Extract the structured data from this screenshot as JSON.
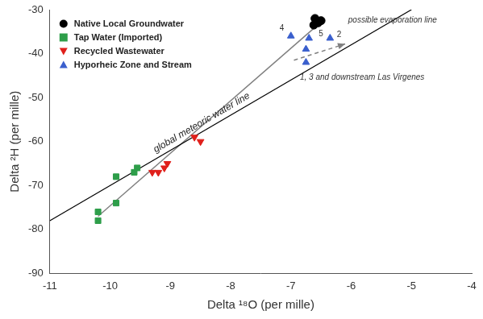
{
  "chart_data": {
    "type": "scatter",
    "x_label": "Delta ¹⁸O (per mille)",
    "y_label": "Delta ²H (per mille)",
    "xlim": [
      -11,
      -4
    ],
    "xticks": [
      -11,
      -10,
      -9,
      -8,
      -7,
      -6,
      -5,
      -4
    ],
    "ylim": [
      -90,
      -30
    ],
    "yticks": [
      -90,
      -80,
      -70,
      -60,
      -50,
      -40,
      -30
    ],
    "grid": false,
    "legend": "upper left",
    "series": [
      {
        "name": "Native Local Groundwater",
        "color": "#000000",
        "marker": "circle",
        "x": [
          -6.6,
          -6.55,
          -6.5,
          -6.62
        ],
        "values": [
          -32,
          -33,
          -32.5,
          -33.5
        ]
      },
      {
        "name": "Tap Water (Imported)",
        "color": "#2e9e4a",
        "marker": "square",
        "x": [
          -10.2,
          -10.2,
          -9.9,
          -9.9,
          -9.6,
          -9.55
        ],
        "values": [
          -76,
          -78,
          -68,
          -74,
          -67,
          -66
        ]
      },
      {
        "name": "Recycled Wastewater",
        "color": "#e0201b",
        "marker": "triangle_down",
        "x": [
          -9.3,
          -9.2,
          -9.1,
          -9.05,
          -8.6,
          -8.5
        ],
        "values": [
          -67,
          -67,
          -66,
          -65,
          -59,
          -60
        ]
      },
      {
        "name": "Hyporheic Zone and Stream",
        "color": "#3a5fcd",
        "marker": "triangle",
        "x": [
          -7.0,
          -6.7,
          -6.75,
          -6.75,
          -6.35
        ],
        "values": [
          -36,
          -36.5,
          -39,
          -42,
          -36.5
        ]
      }
    ],
    "lines": [
      {
        "label": "global meteoric water line",
        "color": "#000000",
        "line_style": "solid",
        "x": [
          -11,
          -5
        ],
        "values": [
          -78,
          -30
        ]
      },
      {
        "color": "#808080",
        "line_style": "solid",
        "x": [
          -10.2,
          -6.6
        ],
        "values": [
          -77,
          -34
        ]
      },
      {
        "color": "#808080",
        "line_style": "dashed",
        "marker": "arrow",
        "x": [
          -6.95,
          -6.1
        ],
        "values": [
          -41.5,
          -37.8
        ]
      }
    ],
    "annotations": [
      {
        "text": "possible evaporation line",
        "x": -6.05,
        "y": -32.5
      },
      {
        "text": "1, 3 and downstream Las Virgenes",
        "x": -6.85,
        "y": -45.5
      },
      {
        "text": "4",
        "x": -7.15,
        "y": -34.3
      },
      {
        "text": "5",
        "x": -6.5,
        "y": -35.6
      },
      {
        "text": "2",
        "x": -6.2,
        "y": -35.7
      }
    ]
  }
}
